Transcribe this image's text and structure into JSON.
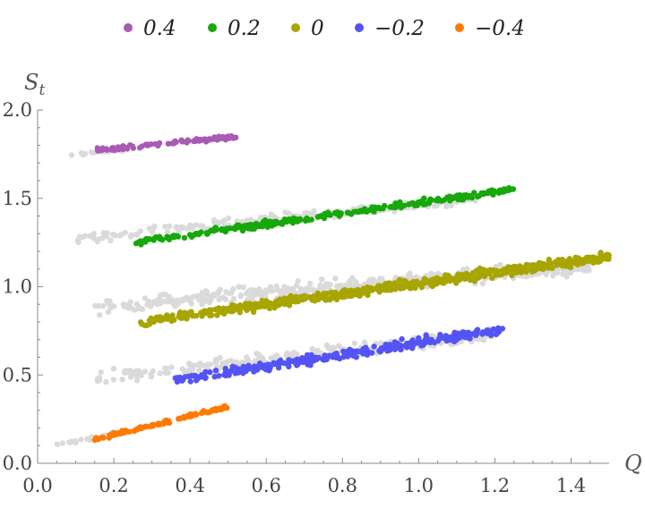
{
  "chart_data": {
    "type": "scatter",
    "xlabel": "Q",
    "ylabel": "S_t",
    "xlim": [
      0.0,
      1.5
    ],
    "ylim": [
      0.0,
      2.0
    ],
    "x_ticks": [
      "0.0",
      "0.2",
      "0.4",
      "0.6",
      "0.8",
      "1.0",
      "1.2",
      "1.4"
    ],
    "y_ticks": [
      "0.0",
      "0.5",
      "1.0",
      "1.5",
      "2.0"
    ],
    "legend_position": "top",
    "background_color": "#dadada",
    "series": [
      {
        "name": "0.4",
        "color": "#a95bb3",
        "colored_range": {
          "x": [
            0.15,
            0.52
          ],
          "y": [
            1.77,
            1.85
          ],
          "n": 90,
          "spread": 0.012
        },
        "gray_range": {
          "x": [
            0.06,
            0.25
          ],
          "y": [
            1.74,
            1.78
          ],
          "n": 20,
          "spread": 0.008
        }
      },
      {
        "name": "0.2",
        "color": "#17a80b",
        "colored_range": {
          "x": [
            0.25,
            1.25
          ],
          "y": [
            1.25,
            1.55
          ],
          "n": 300,
          "spread": 0.015
        },
        "gray_range": {
          "x": [
            0.1,
            1.15
          ],
          "y": [
            1.27,
            1.5
          ],
          "n": 220,
          "spread": 0.025
        }
      },
      {
        "name": "0",
        "color": "#a9a500",
        "colored_range": {
          "x": [
            0.27,
            1.5
          ],
          "y": [
            0.8,
            1.17
          ],
          "n": 650,
          "spread": 0.025
        },
        "gray_range": {
          "x": [
            0.15,
            1.45
          ],
          "y": [
            0.88,
            1.12
          ],
          "n": 450,
          "spread": 0.04
        }
      },
      {
        "name": "−0.2",
        "color": "#5454f5",
        "colored_range": {
          "x": [
            0.36,
            1.23
          ],
          "y": [
            0.47,
            0.76
          ],
          "n": 300,
          "spread": 0.025
        },
        "gray_range": {
          "x": [
            0.15,
            1.2
          ],
          "y": [
            0.48,
            0.73
          ],
          "n": 260,
          "spread": 0.035
        }
      },
      {
        "name": "−0.4",
        "color": "#ff7a00",
        "colored_range": {
          "x": [
            0.14,
            0.5
          ],
          "y": [
            0.13,
            0.32
          ],
          "n": 120,
          "spread": 0.01
        },
        "gray_range": {
          "x": [
            0.04,
            0.2
          ],
          "y": [
            0.1,
            0.17
          ],
          "n": 20,
          "spread": 0.01
        }
      }
    ]
  }
}
